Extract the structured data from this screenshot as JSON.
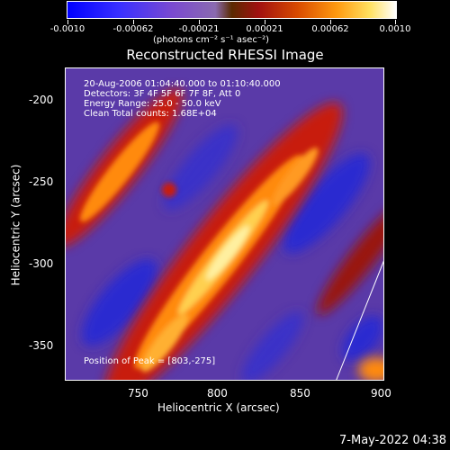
{
  "colorbar": {
    "tick_labels": [
      "-0.0010",
      "-0.00062",
      "-0.00021",
      "0.00021",
      "0.00062",
      "0.0010"
    ],
    "units": "(photons cm⁻² s⁻¹ asec⁻²)"
  },
  "title": "Reconstructed RHESSI Image",
  "info": {
    "time_range": "20-Aug-2006 01:04:40.000 to 01:10:40.000",
    "detectors": "Detectors: 3F 4F 5F 6F 7F 8F, Att 0",
    "energy": "Energy Range: 25.0 - 50.0 keV",
    "clean": "Clean     Total counts: 1.68E+04",
    "peak": "Position of Peak = [803,-275]"
  },
  "axes": {
    "xlabel": "Heliocentric X (arcsec)",
    "ylabel": "Heliocentric Y (arcsec)",
    "x_ticks": [
      "750",
      "800",
      "850",
      "900"
    ],
    "y_ticks": [
      "-200",
      "-250",
      "-300",
      "-350"
    ],
    "x_range": [
      710,
      900
    ],
    "y_range": [
      -372,
      -185
    ]
  },
  "timestamp": "7-May-2022 04:38",
  "colors": {
    "background_purple": "#5a3aa8",
    "negative_blue": "#2a2acc",
    "band_red": "#c81a08",
    "band_orange": "#ff8a10",
    "band_yellow": "#ffe070"
  }
}
